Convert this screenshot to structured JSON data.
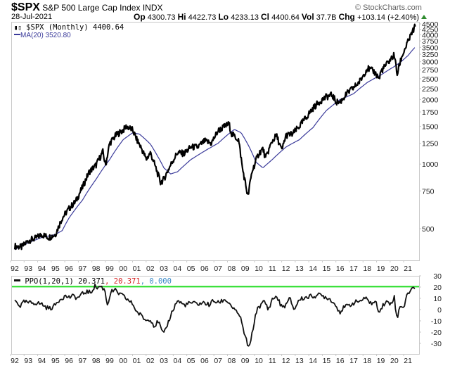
{
  "header": {
    "symbol": "$SPX",
    "name": "S&P 500 Large Cap Index",
    "exchange": "INDX",
    "date": "28-Jul-2021",
    "copyright": "© StockCharts.com",
    "op_label": "Op",
    "op": "4300.73",
    "hi_label": "Hi",
    "hi": "4422.73",
    "lo_label": "Lo",
    "lo": "4233.13",
    "cl_label": "Cl",
    "cl": "4400.64",
    "vol_label": "Vol",
    "vol": "37.7B",
    "chg_label": "Chg",
    "chg": "+103.14 (+2.40%)",
    "chg_direction": "up"
  },
  "legend": {
    "price": "$SPX (Monthly) 4400.64",
    "ma": "MA(20) 3520.80",
    "ppo_label": "PPO(1,20,1) 20.371",
    "ppo_signal": ", 20.371",
    "ppo_hist": ", 0.000"
  },
  "colors": {
    "price": "#000000",
    "ma": "#3a3a9a",
    "ppo": "#111111",
    "ppo_signal_text": "#d42020",
    "ppo_hist_text": "#3a8ac8",
    "threshold": "#22dd22",
    "axis": "#c8c8c8"
  },
  "chart_data": [
    {
      "type": "line",
      "title": "$SPX S&P 500 Large Cap Index INDX (Monthly)",
      "scale": "log",
      "x_ticks": [
        "92",
        "93",
        "94",
        "95",
        "96",
        "97",
        "98",
        "99",
        "00",
        "01",
        "02",
        "03",
        "04",
        "05",
        "06",
        "07",
        "08",
        "09",
        "10",
        "11",
        "12",
        "13",
        "14",
        "15",
        "16",
        "17",
        "18",
        "19",
        "20",
        "21"
      ],
      "y_ticks": [
        4500,
        4250,
        4000,
        3750,
        3500,
        3250,
        3000,
        2750,
        2500,
        2250,
        2000,
        1750,
        1500,
        1250,
        1000,
        750,
        500
      ],
      "ylim": [
        400,
        4600
      ],
      "series": [
        {
          "name": "$SPX (Monthly)",
          "x": [
            1992.0,
            1992.5,
            1993.0,
            1993.5,
            1994.0,
            1994.5,
            1995.0,
            1995.5,
            1996.0,
            1996.5,
            1997.0,
            1997.5,
            1998.0,
            1998.5,
            1998.7,
            1999.0,
            1999.5,
            2000.0,
            2000.25,
            2000.7,
            2001.0,
            2001.3,
            2001.7,
            2002.0,
            2002.5,
            2002.75,
            2003.0,
            2003.5,
            2004.0,
            2004.5,
            2005.0,
            2005.5,
            2006.0,
            2006.5,
            2007.0,
            2007.5,
            2007.8,
            2008.0,
            2008.5,
            2008.8,
            2009.0,
            2009.2,
            2009.5,
            2010.0,
            2010.3,
            2010.5,
            2011.0,
            2011.3,
            2011.7,
            2012.0,
            2012.5,
            2013.0,
            2013.5,
            2014.0,
            2014.5,
            2015.0,
            2015.4,
            2015.7,
            2016.0,
            2016.5,
            2017.0,
            2017.5,
            2018.0,
            2018.5,
            2018.9,
            2019.0,
            2019.5,
            2020.0,
            2020.2,
            2020.5,
            2021.0,
            2021.55
          ],
          "values": [
            415,
            410,
            440,
            450,
            470,
            455,
            470,
            560,
            620,
            670,
            780,
            920,
            990,
            1140,
            980,
            1250,
            1370,
            1440,
            1500,
            1440,
            1300,
            1200,
            1050,
            1130,
            920,
            820,
            850,
            990,
            1130,
            1120,
            1200,
            1200,
            1280,
            1250,
            1430,
            1500,
            1540,
            1380,
            1300,
            950,
            820,
            700,
            920,
            1120,
            1180,
            1060,
            1280,
            1360,
            1150,
            1360,
            1380,
            1500,
            1650,
            1820,
            1960,
            2060,
            2100,
            1950,
            1940,
            2130,
            2270,
            2450,
            2800,
            2700,
            2500,
            2700,
            2950,
            3230,
            2600,
            3100,
            3700,
            4400
          ]
        },
        {
          "name": "MA(20)",
          "x": [
            1992.0,
            1993.0,
            1994.0,
            1995.0,
            1995.5,
            1996.0,
            1997.0,
            1998.0,
            1999.0,
            2000.0,
            2000.7,
            2001.2,
            2002.0,
            2002.5,
            2003.0,
            2003.5,
            2004.0,
            2005.0,
            2006.0,
            2007.0,
            2007.7,
            2008.2,
            2008.7,
            2009.3,
            2009.8,
            2010.3,
            2011.0,
            2012.0,
            2012.5,
            2013.0,
            2014.0,
            2015.0,
            2016.0,
            2016.5,
            2017.0,
            2018.0,
            2019.0,
            2020.0,
            2020.5,
            2021.0,
            2021.55
          ],
          "values": [
            400,
            430,
            455,
            470,
            490,
            560,
            680,
            850,
            1050,
            1300,
            1400,
            1380,
            1240,
            1100,
            960,
            900,
            920,
            1050,
            1150,
            1250,
            1370,
            1450,
            1400,
            1200,
            1020,
            960,
            1050,
            1200,
            1250,
            1300,
            1480,
            1780,
            2000,
            2060,
            2130,
            2400,
            2600,
            2850,
            3000,
            3200,
            3520
          ]
        }
      ]
    },
    {
      "type": "line",
      "title": "PPO(1,20,1)",
      "x_ticks": [
        "92",
        "93",
        "94",
        "95",
        "96",
        "97",
        "98",
        "99",
        "00",
        "01",
        "02",
        "03",
        "04",
        "05",
        "06",
        "07",
        "08",
        "09",
        "10",
        "11",
        "12",
        "13",
        "14",
        "15",
        "16",
        "17",
        "18",
        "19",
        "20",
        "21"
      ],
      "y_ticks": [
        30,
        20,
        10,
        0,
        -10,
        -20,
        -30
      ],
      "ylim": [
        -35,
        32
      ],
      "threshold_line": 20.371,
      "series": [
        {
          "name": "PPO(1,20,1)",
          "x": [
            1992.0,
            1992.2,
            1992.4,
            1992.7,
            1993.0,
            1993.5,
            1994.0,
            1994.3,
            1994.6,
            1994.9,
            1995.3,
            1995.7,
            1996.0,
            1996.4,
            1996.6,
            1997.0,
            1997.3,
            1997.6,
            1997.9,
            1998.1,
            1998.3,
            1998.5,
            1998.7,
            1998.8,
            1999.1,
            1999.4,
            1999.7,
            2000.0,
            2000.3,
            2000.7,
            2001.0,
            2001.3,
            2001.7,
            2002.0,
            2002.3,
            2002.6,
            2002.8,
            2003.0,
            2003.3,
            2003.6,
            2004.0,
            2004.5,
            2005.0,
            2005.5,
            2006.0,
            2006.4,
            2006.6,
            2007.0,
            2007.5,
            2007.8,
            2008.0,
            2008.3,
            2008.6,
            2008.9,
            2009.1,
            2009.3,
            2009.6,
            2009.9,
            2010.2,
            2010.4,
            2010.7,
            2011.0,
            2011.3,
            2011.7,
            2012.0,
            2012.3,
            2012.6,
            2013.0,
            2013.5,
            2014.0,
            2014.5,
            2015.0,
            2015.4,
            2015.7,
            2016.0,
            2016.3,
            2016.7,
            2017.0,
            2017.5,
            2018.0,
            2018.3,
            2018.6,
            2018.9,
            2019.1,
            2019.4,
            2019.7,
            2020.0,
            2020.2,
            2020.4,
            2020.7,
            2021.0,
            2021.3,
            2021.55
          ],
          "values": [
            8,
            6,
            3,
            7,
            6,
            6,
            5,
            2,
            1,
            3,
            9,
            12,
            11,
            12,
            10,
            14,
            16,
            15,
            21,
            19,
            21,
            19,
            16,
            3,
            16,
            17,
            14,
            12,
            9,
            5,
            -2,
            -5,
            -10,
            -8,
            -15,
            -10,
            -18,
            -22,
            -12,
            -2,
            8,
            4,
            6,
            5,
            6,
            4,
            8,
            6,
            9,
            6,
            3,
            -2,
            -5,
            -20,
            -28,
            -35,
            -15,
            2,
            4,
            8,
            0,
            9,
            12,
            2,
            4,
            10,
            0,
            9,
            11,
            12,
            13,
            11,
            8,
            3,
            -2,
            2,
            4,
            6,
            8,
            10,
            5,
            7,
            -2,
            3,
            7,
            5,
            11,
            -10,
            4,
            2,
            15,
            18,
            20.4
          ]
        }
      ]
    }
  ]
}
